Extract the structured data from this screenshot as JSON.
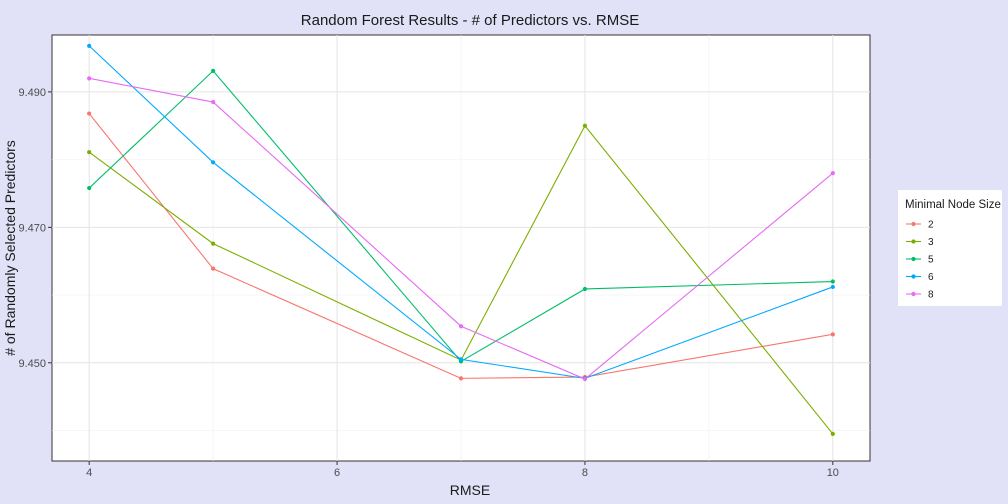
{
  "chart_data": {
    "type": "line",
    "title": "Random Forest Results - # of Predictors vs. RMSE",
    "xlabel": "RMSE",
    "ylabel": "# of Randomly Selected Predictors",
    "x": [
      4,
      5,
      7,
      8,
      10
    ],
    "xlim": [
      3.7,
      10.3
    ],
    "ylim": [
      9.4355,
      9.4984
    ],
    "xticks": [
      4,
      6,
      8,
      10
    ],
    "yticks": [
      9.45,
      9.47,
      9.49
    ],
    "xtick_labels": [
      "4",
      "6",
      "8",
      "10"
    ],
    "ytick_labels": [
      "9.450",
      "9.470",
      "9.490"
    ],
    "grid": true,
    "legend": {
      "title": "Minimal Node Size",
      "position": "right"
    },
    "series": [
      {
        "name": "2",
        "color": "#F8766D",
        "values": [
          9.4868,
          9.4639,
          9.4477,
          9.4479,
          9.4542
        ]
      },
      {
        "name": "3",
        "color": "#7CAE00",
        "values": [
          9.4811,
          9.4676,
          9.4504,
          9.485,
          9.4395
        ]
      },
      {
        "name": "5",
        "color": "#00BE67",
        "values": [
          9.4758,
          9.4931,
          9.4502,
          9.4609,
          9.462
        ]
      },
      {
        "name": "6",
        "color": "#00A9FF",
        "values": [
          9.4968,
          9.4796,
          9.4505,
          9.4477,
          9.4612
        ]
      },
      {
        "name": "8",
        "color": "#E76BF3",
        "values": [
          9.492,
          9.4885,
          9.4554,
          9.4476,
          9.478
        ]
      }
    ]
  }
}
